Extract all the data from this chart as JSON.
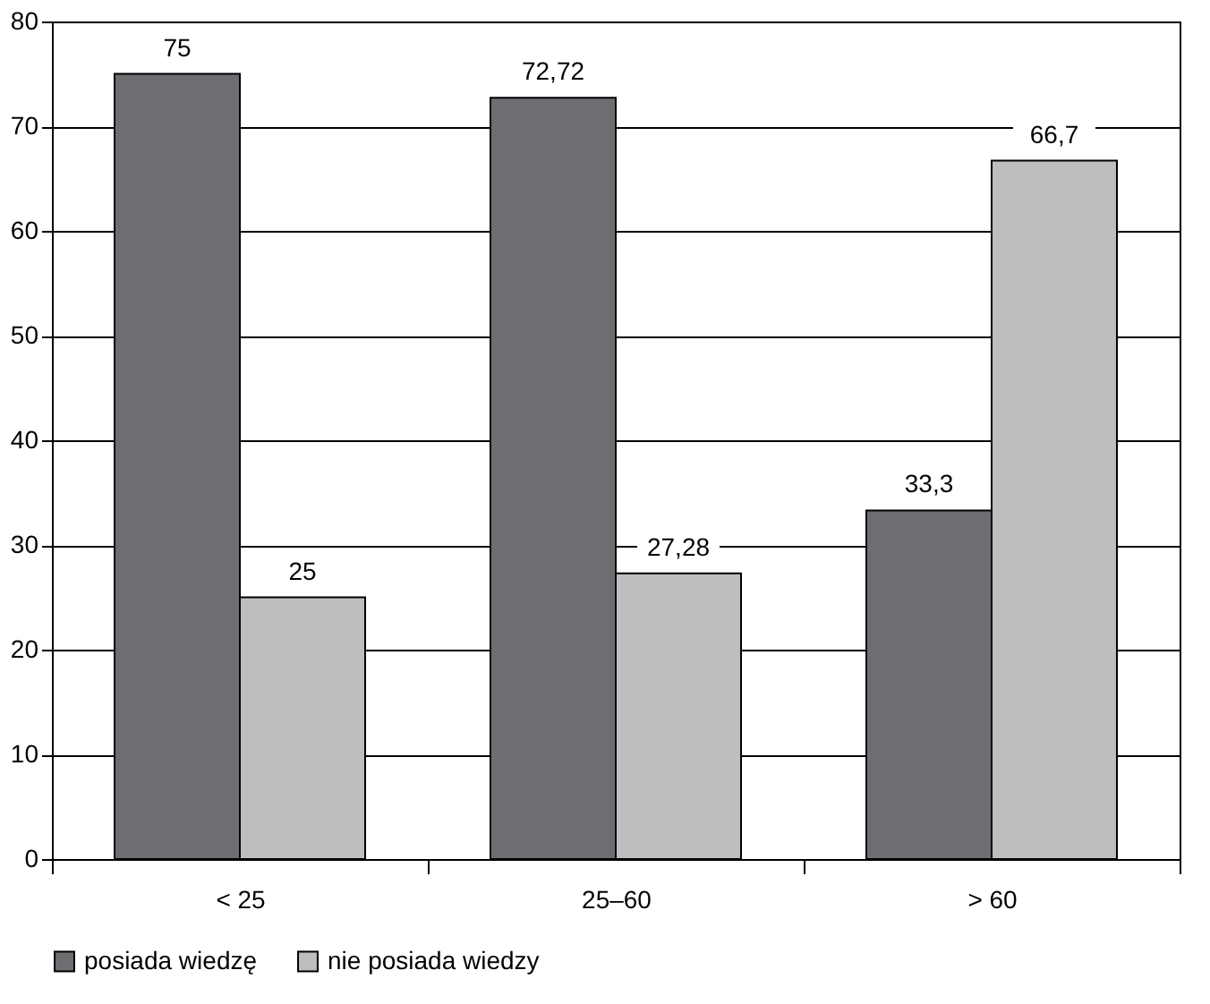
{
  "chart_data": {
    "type": "bar",
    "categories": [
      "< 25",
      "25–60",
      "> 60"
    ],
    "series": [
      {
        "name": "posiada wiedzę",
        "color": "#6d6e71",
        "values": [
          75,
          72.72,
          33.3
        ],
        "value_labels": [
          "75",
          "72,72",
          "33,3"
        ]
      },
      {
        "name": "nie posiada wiedzy",
        "color": "#bcbec0",
        "values": [
          25,
          27.28,
          66.7
        ],
        "value_labels": [
          "25",
          "27,28",
          "66,7"
        ]
      }
    ],
    "ylim": [
      0,
      80
    ],
    "yticks": [
      0,
      10,
      20,
      30,
      40,
      50,
      60,
      70,
      80
    ],
    "grid": "y",
    "legend": "bottom"
  }
}
